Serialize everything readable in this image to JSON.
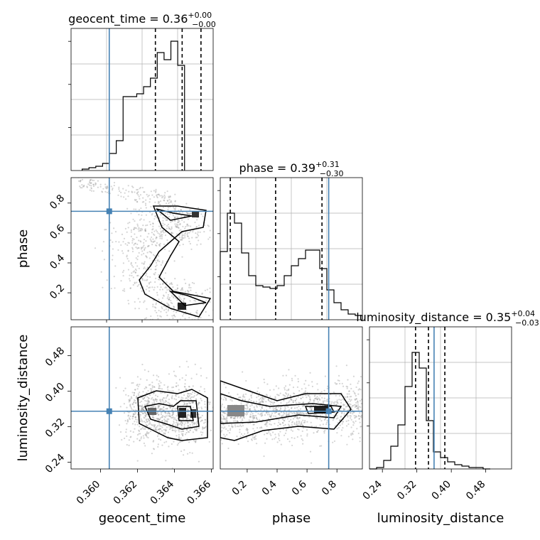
{
  "chart_data": {
    "type": "corner",
    "parameters": [
      "geocent_time",
      "phase",
      "luminosity_distance"
    ],
    "colors": {
      "truth": "#4682b4",
      "hist": "#000000",
      "grid": "#b0b0b0",
      "points": "#888888"
    },
    "panels": [
      {
        "kind": "hist1d",
        "param": "geocent_time",
        "title_main": "geocent_time = 0.36",
        "title_sup": "+0.00",
        "title_sub": "−0.00",
        "xlim": [
          0.3584,
          0.3661
        ],
        "quantiles": [
          0.36297,
          0.36442,
          0.36544
        ],
        "truth": 0.36047,
        "bins_left": 0.359,
        "bin_width": 0.00037,
        "counts": [
          0.01,
          0.02,
          0.03,
          0.05,
          0.12,
          0.21,
          0.52,
          0.52,
          0.54,
          0.59,
          0.65,
          0.83,
          0.78,
          0.91,
          0.74
        ]
      },
      {
        "kind": "scatter2d",
        "xparam": "geocent_time",
        "yparam": "phase",
        "xlim": [
          0.3584,
          0.3661
        ],
        "ylim": [
          0.02,
          0.97
        ],
        "yticks": [
          "0.2",
          "0.4",
          "0.6",
          "0.8"
        ],
        "ylabel": "phase",
        "truth": [
          0.36047,
          0.745
        ]
      },
      {
        "kind": "hist1d",
        "param": "phase",
        "title_main": "phase = 0.39",
        "title_sup": "+0.31",
        "title_sub": "−0.30",
        "xlim": [
          0.02,
          0.97
        ],
        "quantiles": [
          0.087,
          0.39,
          0.7
        ],
        "truth": 0.745,
        "bins_left": 0.02,
        "bin_width": 0.0475,
        "counts": [
          0.48,
          0.75,
          0.68,
          0.47,
          0.31,
          0.24,
          0.23,
          0.22,
          0.24,
          0.31,
          0.38,
          0.43,
          0.49,
          0.49,
          0.36,
          0.21,
          0.12,
          0.07,
          0.04,
          0.03
        ]
      },
      {
        "kind": "scatter2d",
        "xparam": "geocent_time",
        "yparam": "luminosity_distance",
        "xlim": [
          0.3584,
          0.3661
        ],
        "ylim": [
          0.225,
          0.545
        ],
        "xticks": [
          "0.360",
          "0.362",
          "0.364",
          "0.366"
        ],
        "xlabel": "geocent_time",
        "yticks": [
          "0.24",
          "0.32",
          "0.40",
          "0.48"
        ],
        "ylabel": "luminosity_distance",
        "truth": [
          0.36047,
          0.355
        ]
      },
      {
        "kind": "scatter2d",
        "xparam": "phase",
        "yparam": "luminosity_distance",
        "xlim": [
          0.02,
          0.97
        ],
        "ylim": [
          0.225,
          0.545
        ],
        "xticks": [
          "0.2",
          "0.4",
          "0.6",
          "0.8"
        ],
        "xlabel": "phase",
        "truth": [
          0.745,
          0.355
        ]
      },
      {
        "kind": "hist1d",
        "param": "luminosity_distance",
        "title_main": "luminosity_distance = 0.35",
        "title_sup": "+0.04",
        "title_sub": "−0.03",
        "xlim": [
          0.21,
          0.54
        ],
        "quantiles": [
          0.317,
          0.347,
          0.385
        ],
        "truth": 0.36,
        "bins_left": 0.21,
        "bin_width": 0.0165,
        "counts": [
          0.0,
          0.01,
          0.06,
          0.16,
          0.31,
          0.58,
          0.82,
          0.71,
          0.34,
          0.12,
          0.08,
          0.05,
          0.03,
          0.02,
          0.01,
          0.01,
          0.0
        ],
        "xticks": [
          "0.24",
          "0.32",
          "0.40",
          "0.48"
        ],
        "xlabel": "luminosity_distance"
      }
    ]
  }
}
